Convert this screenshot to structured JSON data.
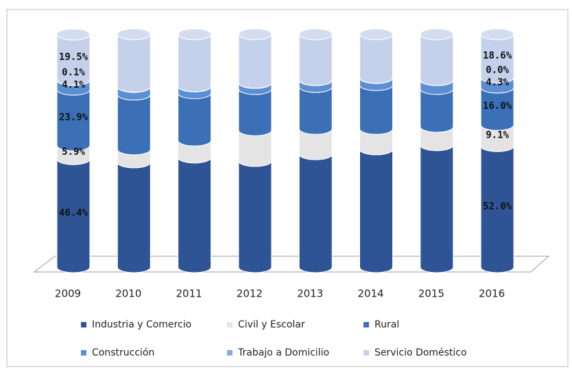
{
  "chart_data": {
    "type": "stacked-cylinder",
    "categories": [
      "2009",
      "2010",
      "2011",
      "2012",
      "2013",
      "2014",
      "2015",
      "2016"
    ],
    "series": [
      {
        "name": "Industria y Comercio",
        "color": "#2f5496",
        "values": [
          46.4,
          45.0,
          47.1,
          45.6,
          48.5,
          50.6,
          52.4,
          52.0
        ],
        "value_labels": [
          "46.4%",
          null,
          null,
          null,
          null,
          null,
          null,
          "52.0%"
        ]
      },
      {
        "name": "Civil y Escolar",
        "color": "#e4e4e4",
        "values": [
          5.9,
          5.6,
          7.3,
          13.2,
          10.9,
          8.8,
          7.9,
          9.1
        ],
        "value_labels": [
          "5.9%",
          null,
          null,
          null,
          null,
          null,
          null,
          "9.1%"
        ]
      },
      {
        "name": "Rural",
        "color": "#3b70b7",
        "values": [
          23.9,
          23.5,
          20.3,
          17.7,
          18.0,
          18.8,
          16.2,
          16.0
        ],
        "value_labels": [
          "23.9%",
          null,
          null,
          null,
          null,
          null,
          null,
          "16.0%"
        ]
      },
      {
        "name": "Construcción",
        "color": "#5b8ed2",
        "values": [
          4.1,
          3.3,
          2.9,
          2.6,
          2.9,
          3.0,
          3.8,
          4.3
        ],
        "value_labels": [
          "4.1%",
          null,
          null,
          null,
          null,
          null,
          null,
          "4.3%"
        ]
      },
      {
        "name": "Trabajo a Domicilio",
        "color": "#8eaadb",
        "values": [
          0.1,
          0.1,
          0.1,
          0.1,
          0.1,
          0.1,
          0.1,
          0.0
        ],
        "value_labels": [
          "0.1%",
          null,
          null,
          null,
          null,
          null,
          null,
          "0.0%"
        ]
      },
      {
        "name": "Servicio Doméstico",
        "color": "#c5d1ea",
        "values": [
          19.5,
          22.5,
          22.3,
          20.8,
          19.6,
          18.7,
          19.6,
          18.6
        ],
        "value_labels": [
          "19.5%",
          null,
          null,
          null,
          null,
          null,
          null,
          "18.6%"
        ]
      }
    ],
    "ylim": [
      0,
      100
    ]
  }
}
